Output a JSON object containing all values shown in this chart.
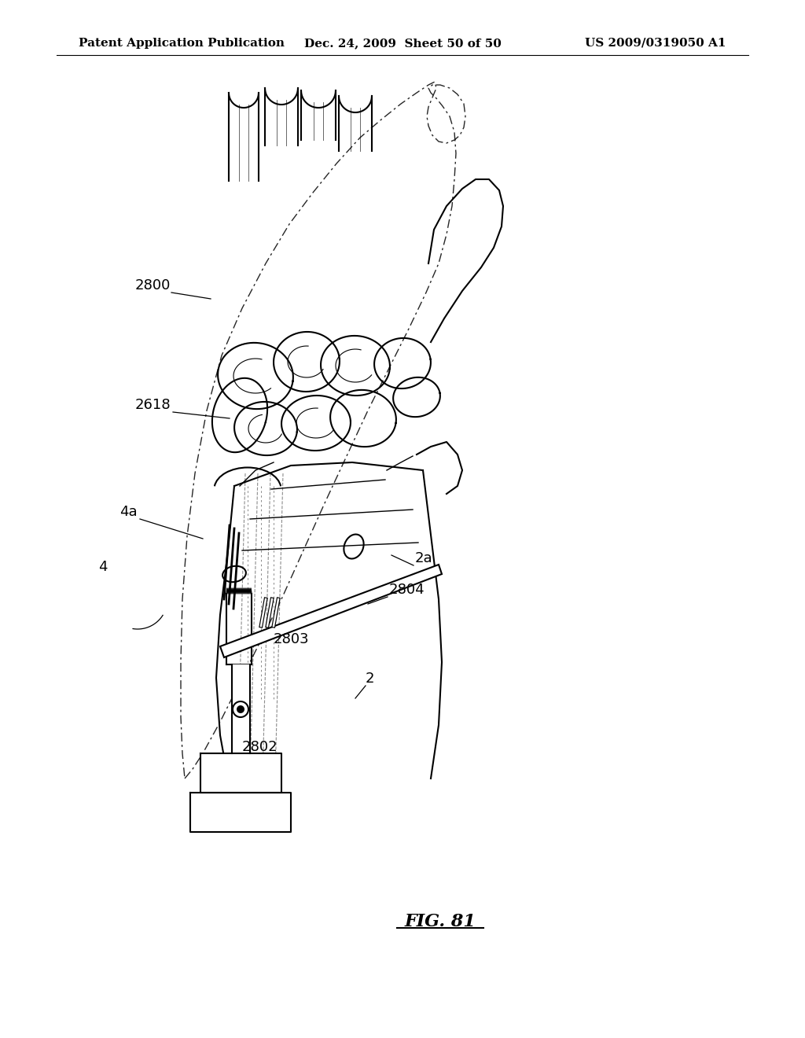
{
  "bg_color": "#ffffff",
  "header_left": "Patent Application Publication",
  "header_mid": "Dec. 24, 2009  Sheet 50 of 50",
  "header_right": "US 2009/0319050 A1",
  "fig_label": "FIG. 81",
  "lw_main": 1.5,
  "lw_light": 1.0,
  "lw_dash": 1.0,
  "label_fontsize": 13,
  "header_fontsize": 11,
  "fig_label_fontsize": 16
}
